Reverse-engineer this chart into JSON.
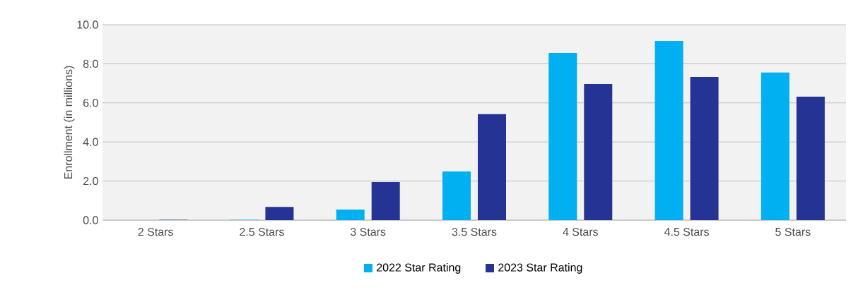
{
  "chart_data": {
    "type": "bar",
    "ylabel": "Enrollment (in millions)",
    "categories": [
      "2 Stars",
      "2.5 Stars",
      "3 Stars",
      "3.5 Stars",
      "4 Stars",
      "4.5 Stars",
      "5 Stars"
    ],
    "series": [
      {
        "name": "2022 Star Rating",
        "color": "#00b0f0",
        "values": [
          0,
          0.02,
          0.54,
          2.49,
          8.56,
          9.17,
          7.55
        ]
      },
      {
        "name": "2023 Star Rating",
        "color": "#253494",
        "values": [
          0.02,
          0.68,
          1.95,
          5.42,
          6.97,
          7.33,
          6.32
        ]
      }
    ],
    "ylim": [
      0,
      10
    ],
    "yticks": [
      {
        "value": 0,
        "label": "0.0"
      },
      {
        "value": 2,
        "label": "2.0"
      },
      {
        "value": 4,
        "label": "4.0"
      },
      {
        "value": 6,
        "label": "6.0"
      },
      {
        "value": 8,
        "label": "8.0"
      },
      {
        "value": 10,
        "label": "10.0"
      }
    ],
    "grid": "y",
    "legend": "bottom"
  }
}
